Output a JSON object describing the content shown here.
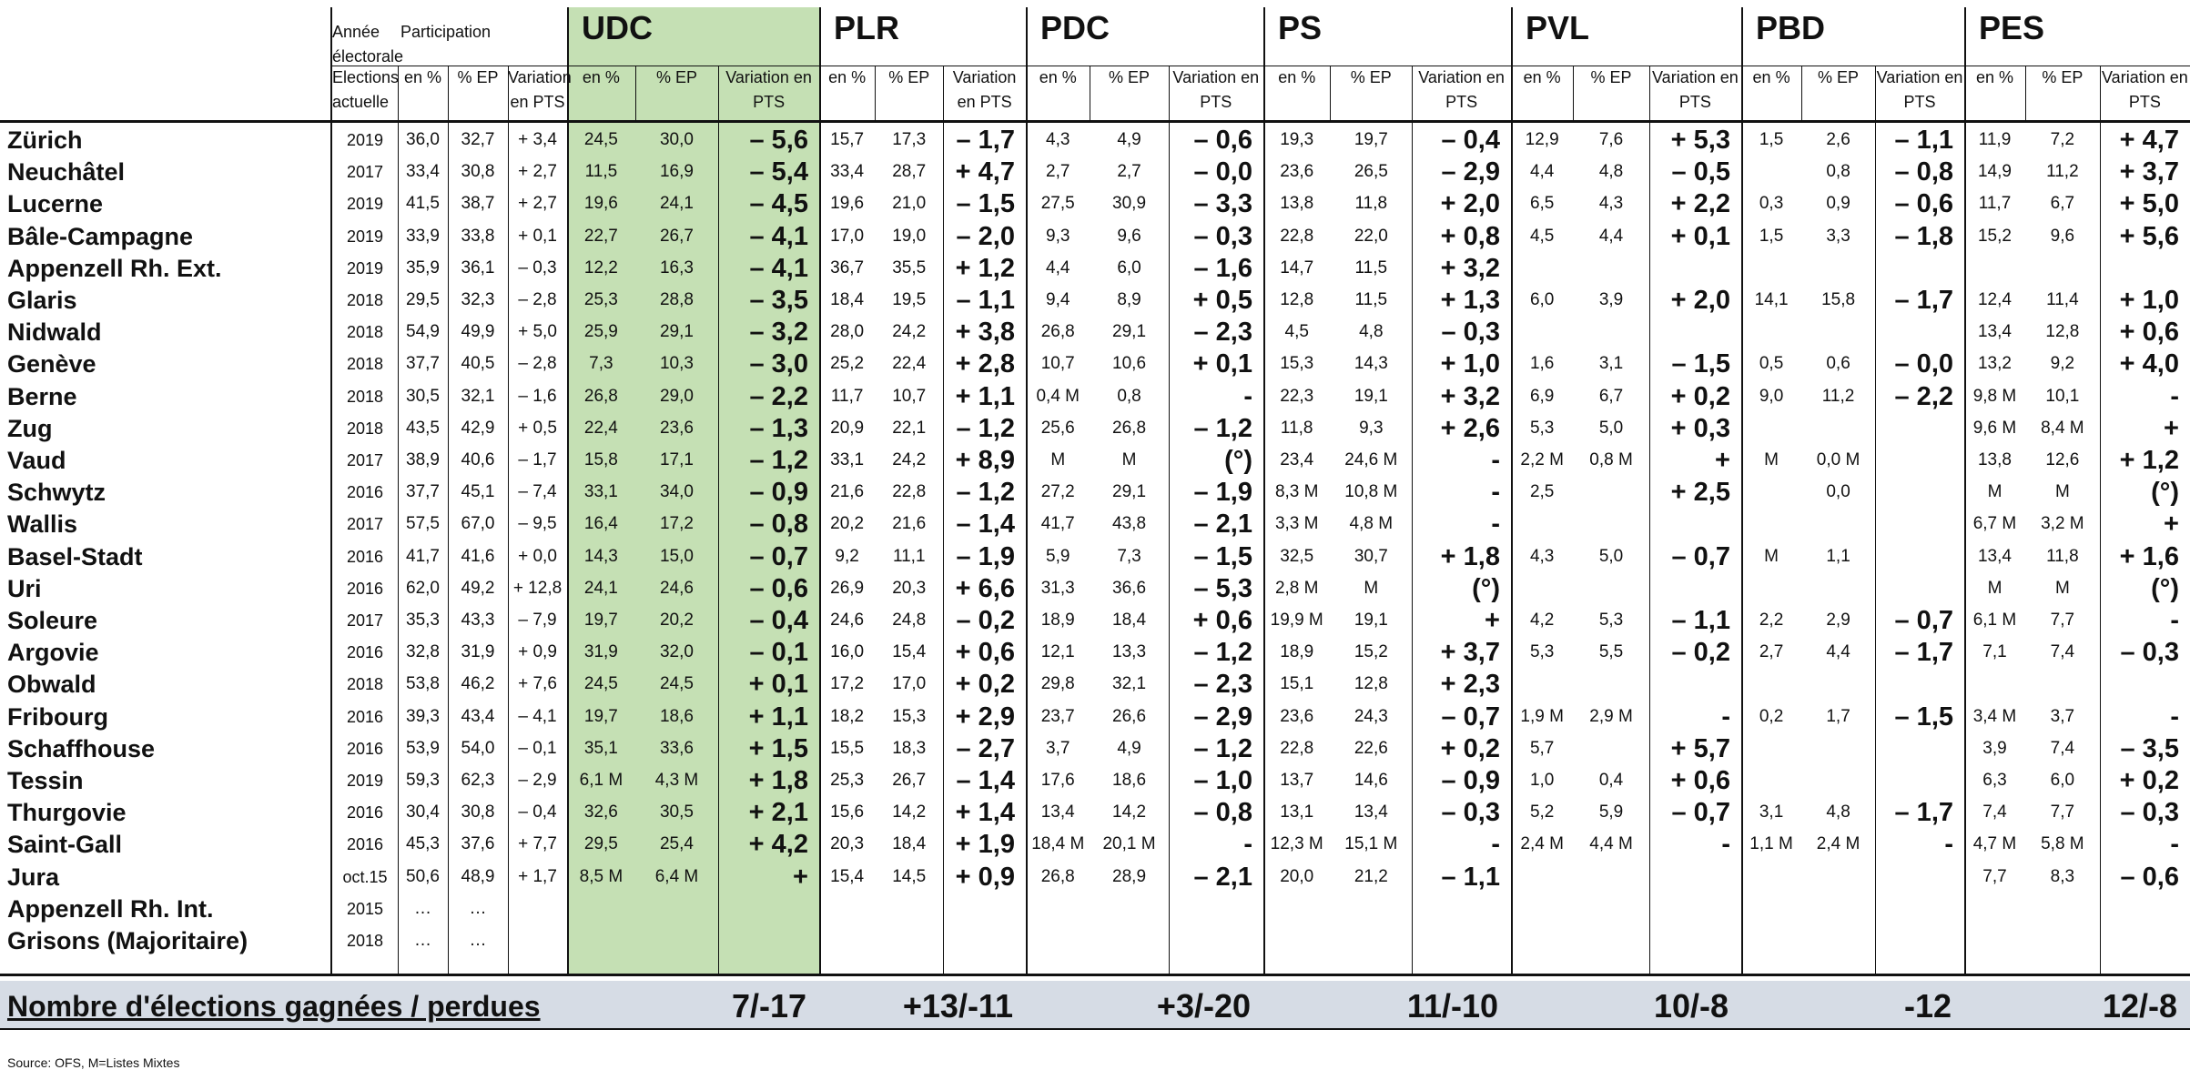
{
  "header": {
    "annee": "Année électorale",
    "participation": "Participation",
    "elections_actuelle": "Elections actuelle",
    "en_pct": "en %",
    "pct_ep": "% EP",
    "variation_pts": "Variation en PTS"
  },
  "parties": [
    "UDC",
    "PLR",
    "PDC",
    "PS",
    "PVL",
    "PBD",
    "PES"
  ],
  "rows": [
    {
      "name": "Zürich",
      "year": "2019",
      "part": [
        "36,0",
        "32,7",
        "+ 3,4"
      ],
      "p": [
        [
          "24,5",
          "30,0",
          "– 5,6"
        ],
        [
          "15,7",
          "17,3",
          "– 1,7"
        ],
        [
          "4,3",
          "4,9",
          "– 0,6"
        ],
        [
          "19,3",
          "19,7",
          "– 0,4"
        ],
        [
          "12,9",
          "7,6",
          "+ 5,3"
        ],
        [
          "1,5",
          "2,6",
          "– 1,1"
        ],
        [
          "11,9",
          "7,2",
          "+ 4,7"
        ]
      ]
    },
    {
      "name": "Neuchâtel",
      "year": "2017",
      "part": [
        "33,4",
        "30,8",
        "+ 2,7"
      ],
      "p": [
        [
          "11,5",
          "16,9",
          "– 5,4"
        ],
        [
          "33,4",
          "28,7",
          "+ 4,7"
        ],
        [
          "2,7",
          "2,7",
          "– 0,0"
        ],
        [
          "23,6",
          "26,5",
          "– 2,9"
        ],
        [
          "4,4",
          "4,8",
          "– 0,5"
        ],
        [
          "",
          "0,8",
          "– 0,8"
        ],
        [
          "14,9",
          "11,2",
          "+ 3,7"
        ]
      ]
    },
    {
      "name": "Lucerne",
      "year": "2019",
      "part": [
        "41,5",
        "38,7",
        "+ 2,7"
      ],
      "p": [
        [
          "19,6",
          "24,1",
          "– 4,5"
        ],
        [
          "19,6",
          "21,0",
          "– 1,5"
        ],
        [
          "27,5",
          "30,9",
          "– 3,3"
        ],
        [
          "13,8",
          "11,8",
          "+ 2,0"
        ],
        [
          "6,5",
          "4,3",
          "+ 2,2"
        ],
        [
          "0,3",
          "0,9",
          "– 0,6"
        ],
        [
          "11,7",
          "6,7",
          "+ 5,0"
        ]
      ]
    },
    {
      "name": "Bâle-Campagne",
      "year": "2019",
      "part": [
        "33,9",
        "33,8",
        "+ 0,1"
      ],
      "p": [
        [
          "22,7",
          "26,7",
          "– 4,1"
        ],
        [
          "17,0",
          "19,0",
          "– 2,0"
        ],
        [
          "9,3",
          "9,6",
          "– 0,3"
        ],
        [
          "22,8",
          "22,0",
          "+ 0,8"
        ],
        [
          "4,5",
          "4,4",
          "+ 0,1"
        ],
        [
          "1,5",
          "3,3",
          "– 1,8"
        ],
        [
          "15,2",
          "9,6",
          "+ 5,6"
        ]
      ]
    },
    {
      "name": "Appenzell Rh. Ext.",
      "year": "2019",
      "part": [
        "35,9",
        "36,1",
        "– 0,3"
      ],
      "p": [
        [
          "12,2",
          "16,3",
          "– 4,1"
        ],
        [
          "36,7",
          "35,5",
          "+ 1,2"
        ],
        [
          "4,4",
          "6,0",
          "– 1,6"
        ],
        [
          "14,7",
          "11,5",
          "+ 3,2"
        ],
        [
          "",
          "",
          ""
        ],
        [
          "",
          "",
          ""
        ],
        [
          "",
          "",
          ""
        ]
      ]
    },
    {
      "name": "Glaris",
      "year": "2018",
      "part": [
        "29,5",
        "32,3",
        "– 2,8"
      ],
      "p": [
        [
          "25,3",
          "28,8",
          "– 3,5"
        ],
        [
          "18,4",
          "19,5",
          "– 1,1"
        ],
        [
          "9,4",
          "8,9",
          "+ 0,5"
        ],
        [
          "12,8",
          "11,5",
          "+ 1,3"
        ],
        [
          "6,0",
          "3,9",
          "+ 2,0"
        ],
        [
          "14,1",
          "15,8",
          "– 1,7"
        ],
        [
          "12,4",
          "11,4",
          "+ 1,0"
        ]
      ]
    },
    {
      "name": "Nidwald",
      "year": "2018",
      "part": [
        "54,9",
        "49,9",
        "+ 5,0"
      ],
      "p": [
        [
          "25,9",
          "29,1",
          "– 3,2"
        ],
        [
          "28,0",
          "24,2",
          "+ 3,8"
        ],
        [
          "26,8",
          "29,1",
          "– 2,3"
        ],
        [
          "4,5",
          "4,8",
          "– 0,3"
        ],
        [
          "",
          "",
          ""
        ],
        [
          "",
          "",
          ""
        ],
        [
          "13,4",
          "12,8",
          "+ 0,6"
        ]
      ]
    },
    {
      "name": "Genève",
      "year": "2018",
      "part": [
        "37,7",
        "40,5",
        "– 2,8"
      ],
      "p": [
        [
          "7,3",
          "10,3",
          "– 3,0"
        ],
        [
          "25,2",
          "22,4",
          "+ 2,8"
        ],
        [
          "10,7",
          "10,6",
          "+ 0,1"
        ],
        [
          "15,3",
          "14,3",
          "+ 1,0"
        ],
        [
          "1,6",
          "3,1",
          "– 1,5"
        ],
        [
          "0,5",
          "0,6",
          "– 0,0"
        ],
        [
          "13,2",
          "9,2",
          "+ 4,0"
        ]
      ]
    },
    {
      "name": "Berne",
      "year": "2018",
      "part": [
        "30,5",
        "32,1",
        "– 1,6"
      ],
      "p": [
        [
          "26,8",
          "29,0",
          "– 2,2"
        ],
        [
          "11,7",
          "10,7",
          "+ 1,1"
        ],
        [
          "0,4 M",
          "0,8",
          "-"
        ],
        [
          "22,3",
          "19,1",
          "+ 3,2"
        ],
        [
          "6,9",
          "6,7",
          "+ 0,2"
        ],
        [
          "9,0",
          "11,2",
          "– 2,2"
        ],
        [
          "9,8 M",
          "10,1",
          "-"
        ]
      ]
    },
    {
      "name": "Zug",
      "year": "2018",
      "part": [
        "43,5",
        "42,9",
        "+ 0,5"
      ],
      "p": [
        [
          "22,4",
          "23,6",
          "– 1,3"
        ],
        [
          "20,9",
          "22,1",
          "– 1,2"
        ],
        [
          "25,6",
          "26,8",
          "– 1,2"
        ],
        [
          "11,8",
          "9,3",
          "+ 2,6"
        ],
        [
          "5,3",
          "5,0",
          "+ 0,3"
        ],
        [
          "",
          "",
          ""
        ],
        [
          "9,6 M",
          "8,4 M",
          "+"
        ]
      ]
    },
    {
      "name": "Vaud",
      "year": "2017",
      "part": [
        "38,9",
        "40,6",
        "– 1,7"
      ],
      "p": [
        [
          "15,8",
          "17,1",
          "– 1,2"
        ],
        [
          "33,1",
          "24,2",
          "+ 8,9"
        ],
        [
          "M",
          "M",
          "(°)"
        ],
        [
          "23,4",
          "24,6 M",
          "-"
        ],
        [
          "2,2 M",
          "0,8 M",
          "+"
        ],
        [
          "M",
          "0,0 M",
          ""
        ],
        [
          "13,8",
          "12,6",
          "+ 1,2"
        ]
      ]
    },
    {
      "name": "Schwytz",
      "year": "2016",
      "part": [
        "37,7",
        "45,1",
        "– 7,4"
      ],
      "p": [
        [
          "33,1",
          "34,0",
          "– 0,9"
        ],
        [
          "21,6",
          "22,8",
          "– 1,2"
        ],
        [
          "27,2",
          "29,1",
          "– 1,9"
        ],
        [
          "8,3 M",
          "10,8 M",
          "-"
        ],
        [
          "2,5",
          "",
          "+ 2,5"
        ],
        [
          "",
          "0,0",
          ""
        ],
        [
          "M",
          "M",
          "(°)"
        ]
      ]
    },
    {
      "name": "Wallis",
      "year": "2017",
      "part": [
        "57,5",
        "67,0",
        "– 9,5"
      ],
      "p": [
        [
          "16,4",
          "17,2",
          "– 0,8"
        ],
        [
          "20,2",
          "21,6",
          "– 1,4"
        ],
        [
          "41,7",
          "43,8",
          "– 2,1"
        ],
        [
          "3,3 M",
          "4,8 M",
          "-"
        ],
        [
          "",
          "",
          ""
        ],
        [
          "",
          "",
          ""
        ],
        [
          "6,7 M",
          "3,2 M",
          "+"
        ]
      ]
    },
    {
      "name": "Basel-Stadt",
      "year": "2016",
      "part": [
        "41,7",
        "41,6",
        "+ 0,0"
      ],
      "p": [
        [
          "14,3",
          "15,0",
          "– 0,7"
        ],
        [
          "9,2",
          "11,1",
          "– 1,9"
        ],
        [
          "5,9",
          "7,3",
          "– 1,5"
        ],
        [
          "32,5",
          "30,7",
          "+ 1,8"
        ],
        [
          "4,3",
          "5,0",
          "– 0,7"
        ],
        [
          "M",
          "1,1",
          ""
        ],
        [
          "13,4",
          "11,8",
          "+ 1,6"
        ]
      ]
    },
    {
      "name": "Uri",
      "year": "2016",
      "part": [
        "62,0",
        "49,2",
        "+ 12,8"
      ],
      "p": [
        [
          "24,1",
          "24,6",
          "– 0,6"
        ],
        [
          "26,9",
          "20,3",
          "+ 6,6"
        ],
        [
          "31,3",
          "36,6",
          "– 5,3"
        ],
        [
          "2,8 M",
          "M",
          "(°)"
        ],
        [
          "",
          "",
          ""
        ],
        [
          "",
          "",
          ""
        ],
        [
          "M",
          "M",
          "(°)"
        ]
      ]
    },
    {
      "name": "Soleure",
      "year": "2017",
      "part": [
        "35,3",
        "43,3",
        "– 7,9"
      ],
      "p": [
        [
          "19,7",
          "20,2",
          "– 0,4"
        ],
        [
          "24,6",
          "24,8",
          "– 0,2"
        ],
        [
          "18,9",
          "18,4",
          "+ 0,6"
        ],
        [
          "19,9 M",
          "19,1",
          "+"
        ],
        [
          "4,2",
          "5,3",
          "– 1,1"
        ],
        [
          "2,2",
          "2,9",
          "– 0,7"
        ],
        [
          "6,1 M",
          "7,7",
          "-"
        ]
      ]
    },
    {
      "name": "Argovie",
      "year": "2016",
      "part": [
        "32,8",
        "31,9",
        "+ 0,9"
      ],
      "p": [
        [
          "31,9",
          "32,0",
          "– 0,1"
        ],
        [
          "16,0",
          "15,4",
          "+ 0,6"
        ],
        [
          "12,1",
          "13,3",
          "– 1,2"
        ],
        [
          "18,9",
          "15,2",
          "+ 3,7"
        ],
        [
          "5,3",
          "5,5",
          "– 0,2"
        ],
        [
          "2,7",
          "4,4",
          "– 1,7"
        ],
        [
          "7,1",
          "7,4",
          "– 0,3"
        ]
      ]
    },
    {
      "name": "Obwald",
      "year": "2018",
      "part": [
        "53,8",
        "46,2",
        "+ 7,6"
      ],
      "p": [
        [
          "24,5",
          "24,5",
          "+ 0,1"
        ],
        [
          "17,2",
          "17,0",
          "+ 0,2"
        ],
        [
          "29,8",
          "32,1",
          "– 2,3"
        ],
        [
          "15,1",
          "12,8",
          "+ 2,3"
        ],
        [
          "",
          "",
          ""
        ],
        [
          "",
          "",
          ""
        ],
        [
          "",
          "",
          ""
        ]
      ]
    },
    {
      "name": "Fribourg",
      "year": "2016",
      "part": [
        "39,3",
        "43,4",
        "– 4,1"
      ],
      "p": [
        [
          "19,7",
          "18,6",
          "+ 1,1"
        ],
        [
          "18,2",
          "15,3",
          "+ 2,9"
        ],
        [
          "23,7",
          "26,6",
          "– 2,9"
        ],
        [
          "23,6",
          "24,3",
          "– 0,7"
        ],
        [
          "1,9 M",
          "2,9 M",
          "-"
        ],
        [
          "0,2",
          "1,7",
          "– 1,5"
        ],
        [
          "3,4 M",
          "3,7",
          "-"
        ]
      ]
    },
    {
      "name": "Schaffhouse",
      "year": "2016",
      "part": [
        "53,9",
        "54,0",
        "– 0,1"
      ],
      "p": [
        [
          "35,1",
          "33,6",
          "+ 1,5"
        ],
        [
          "15,5",
          "18,3",
          "– 2,7"
        ],
        [
          "3,7",
          "4,9",
          "– 1,2"
        ],
        [
          "22,8",
          "22,6",
          "+ 0,2"
        ],
        [
          "5,7",
          "",
          "+ 5,7"
        ],
        [
          "",
          "",
          ""
        ],
        [
          "3,9",
          "7,4",
          "– 3,5"
        ]
      ]
    },
    {
      "name": "Tessin",
      "year": "2019",
      "part": [
        "59,3",
        "62,3",
        "– 2,9"
      ],
      "p": [
        [
          "6,1 M",
          "4,3 M",
          "+ 1,8"
        ],
        [
          "25,3",
          "26,7",
          "– 1,4"
        ],
        [
          "17,6",
          "18,6",
          "– 1,0"
        ],
        [
          "13,7",
          "14,6",
          "– 0,9"
        ],
        [
          "1,0",
          "0,4",
          "+ 0,6"
        ],
        [
          "",
          "",
          ""
        ],
        [
          "6,3",
          "6,0",
          "+ 0,2"
        ]
      ]
    },
    {
      "name": "Thurgovie",
      "year": "2016",
      "part": [
        "30,4",
        "30,8",
        "– 0,4"
      ],
      "p": [
        [
          "32,6",
          "30,5",
          "+ 2,1"
        ],
        [
          "15,6",
          "14,2",
          "+ 1,4"
        ],
        [
          "13,4",
          "14,2",
          "– 0,8"
        ],
        [
          "13,1",
          "13,4",
          "– 0,3"
        ],
        [
          "5,2",
          "5,9",
          "– 0,7"
        ],
        [
          "3,1",
          "4,8",
          "– 1,7"
        ],
        [
          "7,4",
          "7,7",
          "– 0,3"
        ]
      ]
    },
    {
      "name": "Saint-Gall",
      "year": "2016",
      "part": [
        "45,3",
        "37,6",
        "+ 7,7"
      ],
      "p": [
        [
          "29,5",
          "25,4",
          "+ 4,2"
        ],
        [
          "20,3",
          "18,4",
          "+ 1,9"
        ],
        [
          "18,4 M",
          "20,1 M",
          "-"
        ],
        [
          "12,3 M",
          "15,1 M",
          "-"
        ],
        [
          "2,4 M",
          "4,4 M",
          "-"
        ],
        [
          "1,1 M",
          "2,4 M",
          "-"
        ],
        [
          "4,7 M",
          "5,8 M",
          "-"
        ]
      ]
    },
    {
      "name": "Jura",
      "year": "oct.15",
      "part": [
        "50,6",
        "48,9",
        "+ 1,7"
      ],
      "p": [
        [
          "8,5 M",
          "6,4 M",
          "+"
        ],
        [
          "15,4",
          "14,5",
          "+ 0,9"
        ],
        [
          "26,8",
          "28,9",
          "– 2,1"
        ],
        [
          "20,0",
          "21,2",
          "– 1,1"
        ],
        [
          "",
          "",
          ""
        ],
        [
          "",
          "",
          ""
        ],
        [
          "7,7",
          "8,3",
          "– 0,6"
        ]
      ]
    },
    {
      "name": "Appenzell Rh. Int.",
      "year": "2015",
      "part": [
        "…",
        "…",
        ""
      ],
      "p": [
        [
          "",
          "",
          ""
        ],
        [
          "",
          "",
          ""
        ],
        [
          "",
          "",
          ""
        ],
        [
          "",
          "",
          ""
        ],
        [
          "",
          "",
          ""
        ],
        [
          "",
          "",
          ""
        ],
        [
          "",
          "",
          ""
        ]
      ]
    },
    {
      "name": "Grisons (Majoritaire)",
      "year": "2018",
      "part": [
        "…",
        "…",
        ""
      ],
      "p": [
        [
          "",
          "",
          ""
        ],
        [
          "",
          "",
          ""
        ],
        [
          "",
          "",
          ""
        ],
        [
          "",
          "",
          ""
        ],
        [
          "",
          "",
          ""
        ],
        [
          "",
          "",
          ""
        ],
        [
          "",
          "",
          ""
        ]
      ]
    }
  ],
  "summary": {
    "label": "Nombre d'élections gagnées / perdues",
    "values": [
      "7/-17",
      "+13/-11",
      "+3/-20",
      "11/-10",
      "10/-8",
      "-12",
      "12/-8"
    ]
  },
  "source": "Source: OFS, M=Listes Mixtes"
}
